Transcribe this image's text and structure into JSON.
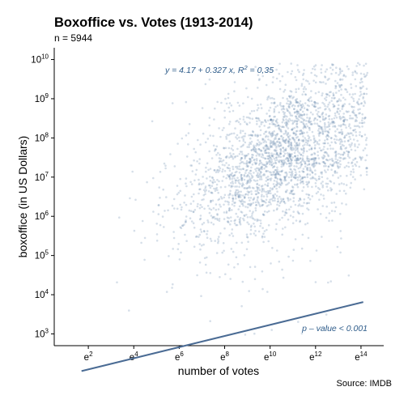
{
  "chart_data": {
    "type": "scatter",
    "title": "Boxoffice vs. Votes (1913-2014)",
    "subtitle": "n = 5944",
    "caption": "Source: IMDB",
    "xlabel": "number of votes",
    "ylabel": "boxoffice (in US Dollars)",
    "x_scale": "log (base e)",
    "y_scale": "log (base 10)",
    "xlim_ln": [
      0.5,
      15.0
    ],
    "ylim_log10": [
      2.7,
      10.3
    ],
    "x_ticks": [
      {
        "exp": 2,
        "base": "e",
        "sup": "2"
      },
      {
        "exp": 4,
        "base": "e",
        "sup": "4"
      },
      {
        "exp": 6,
        "base": "e",
        "sup": "6"
      },
      {
        "exp": 8,
        "base": "e",
        "sup": "8"
      },
      {
        "exp": 10,
        "base": "e",
        "sup": "10"
      },
      {
        "exp": 12,
        "base": "e",
        "sup": "12"
      },
      {
        "exp": 14,
        "base": "e",
        "sup": "14"
      }
    ],
    "y_ticks": [
      {
        "exp": 3,
        "base": "10",
        "sup": "3"
      },
      {
        "exp": 4,
        "base": "10",
        "sup": "4"
      },
      {
        "exp": 5,
        "base": "10",
        "sup": "5"
      },
      {
        "exp": 6,
        "base": "10",
        "sup": "6"
      },
      {
        "exp": 7,
        "base": "10",
        "sup": "7"
      },
      {
        "exp": 8,
        "base": "10",
        "sup": "8"
      },
      {
        "exp": 9,
        "base": "10",
        "sup": "9"
      },
      {
        "exp": 10,
        "base": "10",
        "sup": "10"
      }
    ],
    "regression": {
      "equation_text": "y = 4.17 + 0.327 x,  R² = 0,35",
      "eq_prefix": "y = 4.17 + 0.327 x,  R",
      "eq_sup": "2",
      "eq_suffix": " = 0,35",
      "intercept": 4.17,
      "slope": 0.327,
      "x_range_ln": [
        1.7,
        14.1
      ],
      "pvalue_text": "p – value < 0.001"
    },
    "point_cloud": {
      "count": 5944,
      "center_ln_votes": 10.7,
      "center_log10_boxoffice": 7.6
    },
    "colors": {
      "points": "#5b7fa8",
      "line": "#4a6b94",
      "annotation": "#2e5c8a"
    },
    "grid": false
  }
}
